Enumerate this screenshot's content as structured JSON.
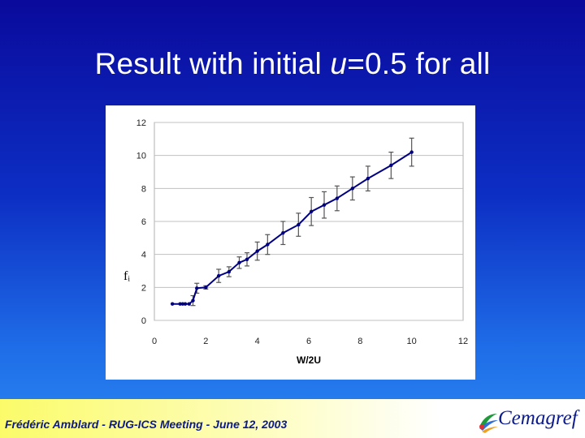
{
  "slide": {
    "title_prefix": "Result with initial ",
    "title_variable": "u",
    "title_suffix": "=0.5 for all"
  },
  "footer": {
    "text": "Frédéric Amblard - RUG-ICS Meeting - June 12, 2003",
    "logo_text": "Cemagref"
  },
  "chart_data": {
    "type": "line",
    "xlabel": "W/2U",
    "ylabel": "fᵢ",
    "xlim": [
      0,
      12
    ],
    "ylim": [
      0,
      12
    ],
    "xticks": [
      0,
      2,
      4,
      6,
      8,
      10,
      12
    ],
    "yticks": [
      0,
      2,
      4,
      6,
      8,
      10,
      12
    ],
    "grid": "horizontal",
    "series": [
      {
        "color": "#000080",
        "x": [
          0.7,
          1.0,
          1.1,
          1.2,
          1.35,
          1.5,
          1.65,
          2.0,
          2.5,
          2.9,
          3.3,
          3.6,
          4.0,
          4.4,
          5.0,
          5.6,
          6.1,
          6.6,
          7.1,
          7.7,
          8.3,
          9.2,
          10.0
        ],
        "y": [
          1.0,
          1.0,
          1.0,
          1.0,
          1.0,
          1.2,
          1.95,
          2.0,
          2.7,
          2.95,
          3.5,
          3.7,
          4.2,
          4.6,
          5.3,
          5.8,
          6.6,
          7.0,
          7.4,
          8.0,
          8.6,
          9.4,
          10.2
        ],
        "error": [
          0.0,
          0.0,
          0.0,
          0.0,
          0.0,
          0.3,
          0.3,
          0.1,
          0.4,
          0.3,
          0.35,
          0.4,
          0.55,
          0.6,
          0.7,
          0.7,
          0.85,
          0.8,
          0.75,
          0.7,
          0.75,
          0.8,
          0.85
        ]
      }
    ]
  },
  "colors": {
    "line": "#000080",
    "error_bar": "#555555",
    "grid": "#c0c0c0",
    "axis_text": "#222222"
  }
}
